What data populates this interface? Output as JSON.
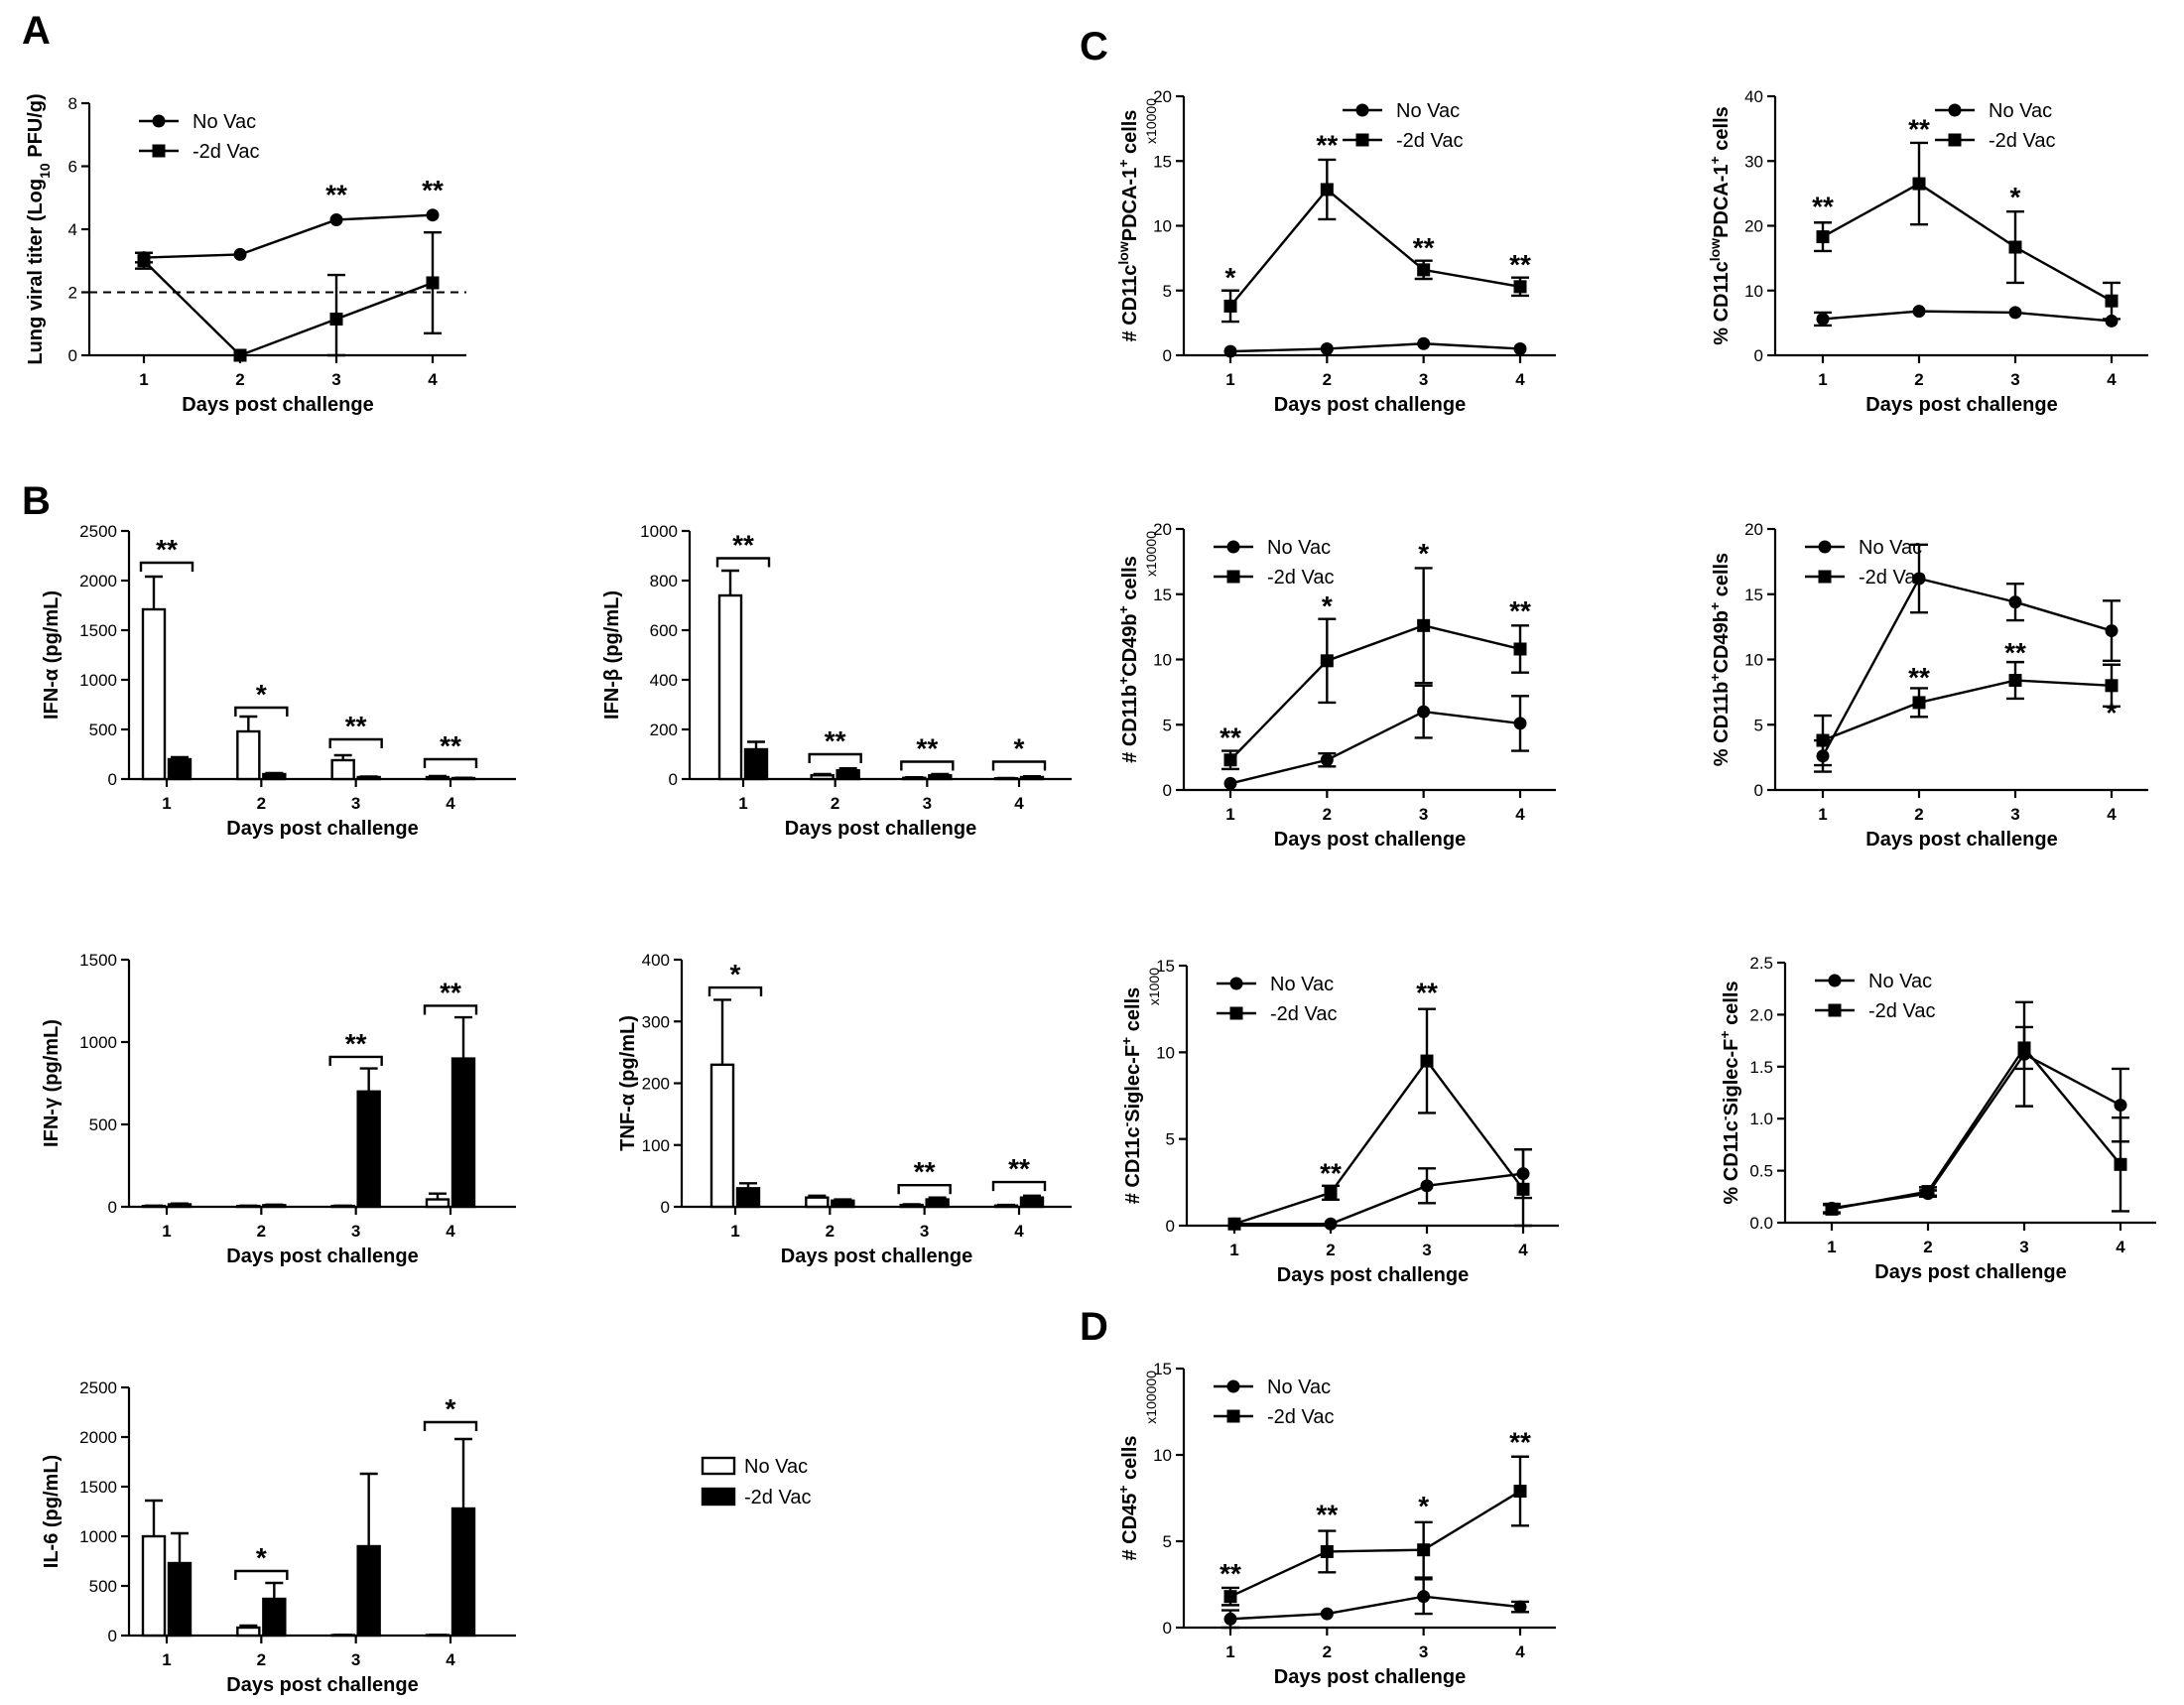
{
  "panel_labels": [
    "A",
    "B",
    "C",
    "D"
  ],
  "bar_legend": {
    "no_vac": "No Vac",
    "vac": "-2d Vac"
  },
  "chart_data": [
    {
      "id": "A",
      "type": "line",
      "ylabel": "Lung viral titer (Log<sub>10</sub> PFU/g)",
      "xlabel": "Days post challenge",
      "categories": [
        "1",
        "2",
        "3",
        "4"
      ],
      "ylim": [
        0,
        8
      ],
      "yticks": [
        0,
        2,
        4,
        6,
        8
      ],
      "ytick_labels": [
        "0",
        "2",
        "4",
        "6",
        "8"
      ],
      "dashed_line": 2,
      "series": [
        {
          "name": "No Vac",
          "marker": "circle",
          "values": [
            3.1,
            3.2,
            4.3,
            4.45
          ],
          "err": [
            0.15,
            0,
            0,
            0
          ]
        },
        {
          "name": "-2d Vac",
          "marker": "square",
          "values": [
            3.0,
            0,
            1.15,
            2.3
          ],
          "err": [
            0.25,
            0,
            1.4,
            1.6
          ]
        }
      ],
      "stars": [
        {
          "x": 3,
          "text": "**",
          "y": 4.8
        },
        {
          "x": 4,
          "text": "**",
          "y": 4.95
        }
      ],
      "legend": "top-left"
    },
    {
      "id": "B1",
      "type": "bar",
      "ylabel": "IFN-α (pg/mL)",
      "xlabel": "Days post challenge",
      "categories": [
        "1",
        "2",
        "3",
        "4"
      ],
      "ylim": [
        0,
        2500
      ],
      "yticks": [
        0,
        500,
        1000,
        1500,
        2000,
        2500
      ],
      "ytick_labels": [
        "0",
        "500",
        "1000",
        "1500",
        "2000",
        "2500"
      ],
      "series": [
        {
          "name": "No Vac",
          "values": [
            1710,
            480,
            190,
            20
          ],
          "err": [
            330,
            150,
            50,
            10
          ]
        },
        {
          "name": "-2d Vac",
          "values": [
            200,
            50,
            20,
            10
          ],
          "err": [
            20,
            10,
            5,
            3
          ]
        }
      ],
      "brackets": [
        {
          "x": 1,
          "text": "**",
          "y": 2180
        },
        {
          "x": 2,
          "text": "*",
          "y": 720
        },
        {
          "x": 3,
          "text": "**",
          "y": 400
        },
        {
          "x": 4,
          "text": "**",
          "y": 200
        }
      ]
    },
    {
      "id": "B2",
      "type": "bar",
      "ylabel": "IFN-β (pg/mL)",
      "xlabel": "Days post challenge",
      "categories": [
        "1",
        "2",
        "3",
        "4"
      ],
      "ylim": [
        0,
        1000
      ],
      "yticks": [
        0,
        200,
        400,
        600,
        800,
        1000
      ],
      "ytick_labels": [
        "0",
        "200",
        "400",
        "600",
        "800",
        "1000"
      ],
      "series": [
        {
          "name": "No Vac",
          "values": [
            740,
            15,
            5,
            3
          ],
          "err": [
            100,
            5,
            2,
            1
          ]
        },
        {
          "name": "-2d Vac",
          "values": [
            120,
            35,
            15,
            8
          ],
          "err": [
            30,
            8,
            5,
            3
          ]
        }
      ],
      "brackets": [
        {
          "x": 1,
          "text": "**",
          "y": 890
        },
        {
          "x": 2,
          "text": "**",
          "y": 100
        },
        {
          "x": 3,
          "text": "**",
          "y": 70
        },
        {
          "x": 4,
          "text": "*",
          "y": 70
        }
      ]
    },
    {
      "id": "B3",
      "type": "bar",
      "ylabel": "IFN-γ (pg/mL)",
      "xlabel": "Days post challenge",
      "categories": [
        "1",
        "2",
        "3",
        "4"
      ],
      "ylim": [
        0,
        1500
      ],
      "yticks": [
        0,
        500,
        1000,
        1500
      ],
      "ytick_labels": [
        "0",
        "500",
        "1000",
        "1500"
      ],
      "series": [
        {
          "name": "No Vac",
          "values": [
            5,
            5,
            5,
            45
          ],
          "err": [
            2,
            2,
            2,
            35
          ]
        },
        {
          "name": "-2d Vac",
          "values": [
            15,
            10,
            700,
            900
          ],
          "err": [
            5,
            3,
            140,
            250
          ]
        }
      ],
      "brackets": [
        {
          "x": 3,
          "text": "**",
          "y": 910
        },
        {
          "x": 4,
          "text": "**",
          "y": 1220
        }
      ]
    },
    {
      "id": "B4",
      "type": "bar",
      "ylabel": "TNF-α (pg/mL)",
      "xlabel": "Days post challenge",
      "categories": [
        "1",
        "2",
        "3",
        "4"
      ],
      "ylim": [
        0,
        400
      ],
      "yticks": [
        0,
        100,
        200,
        300,
        400
      ],
      "ytick_labels": [
        "0",
        "100",
        "200",
        "300",
        "400"
      ],
      "series": [
        {
          "name": "No Vac",
          "values": [
            230,
            15,
            3,
            2
          ],
          "err": [
            105,
            3,
            1,
            1
          ]
        },
        {
          "name": "-2d Vac",
          "values": [
            30,
            10,
            12,
            15
          ],
          "err": [
            8,
            2,
            3,
            3
          ]
        }
      ],
      "brackets": [
        {
          "x": 1,
          "text": "*",
          "y": 355
        },
        {
          "x": 3,
          "text": "**",
          "y": 35
        },
        {
          "x": 4,
          "text": "**",
          "y": 40
        }
      ]
    },
    {
      "id": "B5",
      "type": "bar",
      "ylabel": "IL-6 (pg/mL)",
      "xlabel": "Days post challenge",
      "categories": [
        "1",
        "2",
        "3",
        "4"
      ],
      "ylim": [
        0,
        2500
      ],
      "yticks": [
        0,
        500,
        1000,
        1500,
        2000,
        2500
      ],
      "ytick_labels": [
        "0",
        "500",
        "1000",
        "1500",
        "2000",
        "2500"
      ],
      "series": [
        {
          "name": "No Vac",
          "values": [
            1000,
            80,
            5,
            5
          ],
          "err": [
            360,
            20,
            2,
            2
          ]
        },
        {
          "name": "-2d Vac",
          "values": [
            730,
            370,
            900,
            1280
          ],
          "err": [
            300,
            160,
            730,
            700
          ]
        }
      ],
      "brackets": [
        {
          "x": 2,
          "text": "*",
          "y": 650
        },
        {
          "x": 4,
          "text": "*",
          "y": 2150
        }
      ]
    },
    {
      "id": "C1",
      "type": "line",
      "ylabel": "# CD11c<sup>low</sup>PDCA-1<sup>+</sup> cells",
      "xlabel": "Days post challenge",
      "scale_note": "x10000",
      "categories": [
        "1",
        "2",
        "3",
        "4"
      ],
      "ylim": [
        0,
        20
      ],
      "yticks": [
        0,
        5,
        10,
        15,
        20
      ],
      "ytick_labels": [
        "0",
        "5",
        "10",
        "15",
        "20"
      ],
      "series": [
        {
          "name": "No Vac",
          "marker": "circle",
          "values": [
            0.3,
            0.5,
            0.9,
            0.5
          ],
          "err": [
            0,
            0,
            0,
            0
          ]
        },
        {
          "name": "-2d Vac",
          "marker": "square",
          "values": [
            3.8,
            12.8,
            6.6,
            5.3
          ],
          "err": [
            1.2,
            2.3,
            0.7,
            0.7
          ]
        }
      ],
      "stars": [
        {
          "x": 1,
          "text": "*",
          "y": 5.3
        },
        {
          "x": 2,
          "text": "**",
          "y": 15.5
        },
        {
          "x": 3,
          "text": "**",
          "y": 7.6
        },
        {
          "x": 4,
          "text": "**",
          "y": 6.3
        }
      ],
      "legend": "top-right"
    },
    {
      "id": "C2",
      "type": "line",
      "ylabel": "% CD11c<sup>low</sup>PDCA-1<sup>+</sup> cells",
      "xlabel": "Days post challenge",
      "categories": [
        "1",
        "2",
        "3",
        "4"
      ],
      "ylim": [
        0,
        40
      ],
      "yticks": [
        0,
        10,
        20,
        30,
        40
      ],
      "ytick_labels": [
        "0",
        "10",
        "20",
        "30",
        "40"
      ],
      "series": [
        {
          "name": "No Vac",
          "marker": "circle",
          "values": [
            5.6,
            6.8,
            6.6,
            5.3
          ],
          "err": [
            1,
            0,
            0,
            0
          ]
        },
        {
          "name": "-2d Vac",
          "marker": "square",
          "values": [
            18.3,
            26.5,
            16.7,
            8.4
          ],
          "err": [
            2.2,
            6.3,
            5.5,
            2.8
          ]
        }
      ],
      "stars": [
        {
          "x": 1,
          "text": "**",
          "y": 21.5
        },
        {
          "x": 2,
          "text": "**",
          "y": 33.5
        },
        {
          "x": 3,
          "text": "*",
          "y": 23
        }
      ],
      "legend": "top-right"
    },
    {
      "id": "C3",
      "type": "line",
      "ylabel": "# CD11b<sup>+</sup>CD49b<sup>+</sup> cells",
      "xlabel": "Days post challenge",
      "scale_note": "x10000",
      "categories": [
        "1",
        "2",
        "3",
        "4"
      ],
      "ylim": [
        0,
        20
      ],
      "yticks": [
        0,
        5,
        10,
        15,
        20
      ],
      "ytick_labels": [
        "0",
        "5",
        "10",
        "15",
        "20"
      ],
      "series": [
        {
          "name": "No Vac",
          "marker": "circle",
          "values": [
            0.5,
            2.3,
            6.0,
            5.1
          ],
          "err": [
            0,
            0.5,
            2.0,
            2.1
          ]
        },
        {
          "name": "-2d Vac",
          "marker": "square",
          "values": [
            2.3,
            9.9,
            12.6,
            10.8
          ],
          "err": [
            0.7,
            3.2,
            4.4,
            1.8
          ]
        }
      ],
      "stars": [
        {
          "x": 1,
          "text": "**",
          "y": 3.3
        },
        {
          "x": 2,
          "text": "*",
          "y": 13.4
        },
        {
          "x": 3,
          "text": "*",
          "y": 17.4
        },
        {
          "x": 4,
          "text": "**",
          "y": 13
        }
      ],
      "legend": "top-left"
    },
    {
      "id": "C4",
      "type": "line",
      "ylabel": "% CD11b<sup>+</sup>CD49b<sup>+</sup> cells",
      "xlabel": "Days post challenge",
      "categories": [
        "1",
        "2",
        "3",
        "4"
      ],
      "ylim": [
        0,
        20
      ],
      "yticks": [
        0,
        5,
        10,
        15,
        20
      ],
      "ytick_labels": [
        "0",
        "5",
        "10",
        "15",
        "20"
      ],
      "series": [
        {
          "name": "No Vac",
          "marker": "circle",
          "values": [
            2.6,
            16.2,
            14.4,
            12.2
          ],
          "err": [
            1.2,
            2.6,
            1.4,
            2.3
          ]
        },
        {
          "name": "-2d Vac",
          "marker": "square",
          "values": [
            3.8,
            6.7,
            8.4,
            8.0
          ],
          "err": [
            1.9,
            1.1,
            1.4,
            1.6
          ]
        }
      ],
      "stars": [
        {
          "x": 2,
          "text": "**",
          "y": 7.9
        },
        {
          "x": 3,
          "text": "**",
          "y": 9.8
        },
        {
          "x": 4,
          "text": "*",
          "y": 5.2
        }
      ],
      "legend": "top-left"
    },
    {
      "id": "C5",
      "type": "line",
      "ylabel": "# CD11c<sup>-</sup>Siglec-F<sup>+</sup> cells",
      "xlabel": "Days post challenge",
      "scale_note": "x1000",
      "categories": [
        "1",
        "2",
        "3",
        "4"
      ],
      "ylim": [
        0,
        15
      ],
      "yticks": [
        0,
        5,
        10,
        15
      ],
      "ytick_labels": [
        "0",
        "5",
        "10",
        "15"
      ],
      "series": [
        {
          "name": "No Vac",
          "marker": "circle",
          "values": [
            0.1,
            0.1,
            2.3,
            3.0
          ],
          "err": [
            0,
            0,
            1.0,
            1.4
          ]
        },
        {
          "name": "-2d Vac",
          "marker": "square",
          "values": [
            0.1,
            1.9,
            9.5,
            2.1
          ],
          "err": [
            0,
            0.4,
            3.0,
            2.3
          ]
        }
      ],
      "stars": [
        {
          "x": 2,
          "text": "**",
          "y": 2.5
        },
        {
          "x": 3,
          "text": "**",
          "y": 12.9
        }
      ],
      "legend": "top-left"
    },
    {
      "id": "C6",
      "type": "line",
      "ylabel": "% CD11c<sup>-</sup>Siglec-F<sup>+</sup> cells",
      "xlabel": "Days post challenge",
      "categories": [
        "1",
        "2",
        "3",
        "4"
      ],
      "ylim": [
        0,
        2.5
      ],
      "yticks": [
        0,
        0.5,
        1.0,
        1.5,
        2.0,
        2.5
      ],
      "ytick_labels": [
        "0.0",
        "0.5",
        "1.0",
        "1.5",
        "2.0",
        "2.5"
      ],
      "series": [
        {
          "name": "No Vac",
          "marker": "circle",
          "values": [
            0.14,
            0.28,
            1.62,
            1.13
          ],
          "err": [
            0.04,
            0.03,
            0.5,
            0.35
          ]
        },
        {
          "name": "-2d Vac",
          "marker": "square",
          "values": [
            0.13,
            0.3,
            1.68,
            0.56
          ],
          "err": [
            0.04,
            0.04,
            0.2,
            0.45
          ]
        }
      ],
      "stars": [],
      "legend": "top-left"
    },
    {
      "id": "D",
      "type": "line",
      "ylabel": "# CD45<sup>+</sup> cells",
      "xlabel": "Days post challenge",
      "scale_note": "x100000",
      "categories": [
        "1",
        "2",
        "3",
        "4"
      ],
      "ylim": [
        0,
        15
      ],
      "yticks": [
        0,
        5,
        10,
        15
      ],
      "ytick_labels": [
        "0",
        "5",
        "10",
        "15"
      ],
      "series": [
        {
          "name": "No Vac",
          "marker": "circle",
          "values": [
            0.5,
            0.8,
            1.8,
            1.2
          ],
          "err": [
            0.5,
            0,
            1.0,
            0.3
          ]
        },
        {
          "name": "-2d Vac",
          "marker": "square",
          "values": [
            1.8,
            4.4,
            4.5,
            7.9
          ],
          "err": [
            0.5,
            1.2,
            1.6,
            2.0
          ]
        }
      ],
      "stars": [
        {
          "x": 1,
          "text": "**",
          "y": 2.6
        },
        {
          "x": 2,
          "text": "**",
          "y": 6
        },
        {
          "x": 3,
          "text": "*",
          "y": 6.5
        },
        {
          "x": 4,
          "text": "**",
          "y": 10.2
        }
      ],
      "legend": "top-left"
    }
  ]
}
